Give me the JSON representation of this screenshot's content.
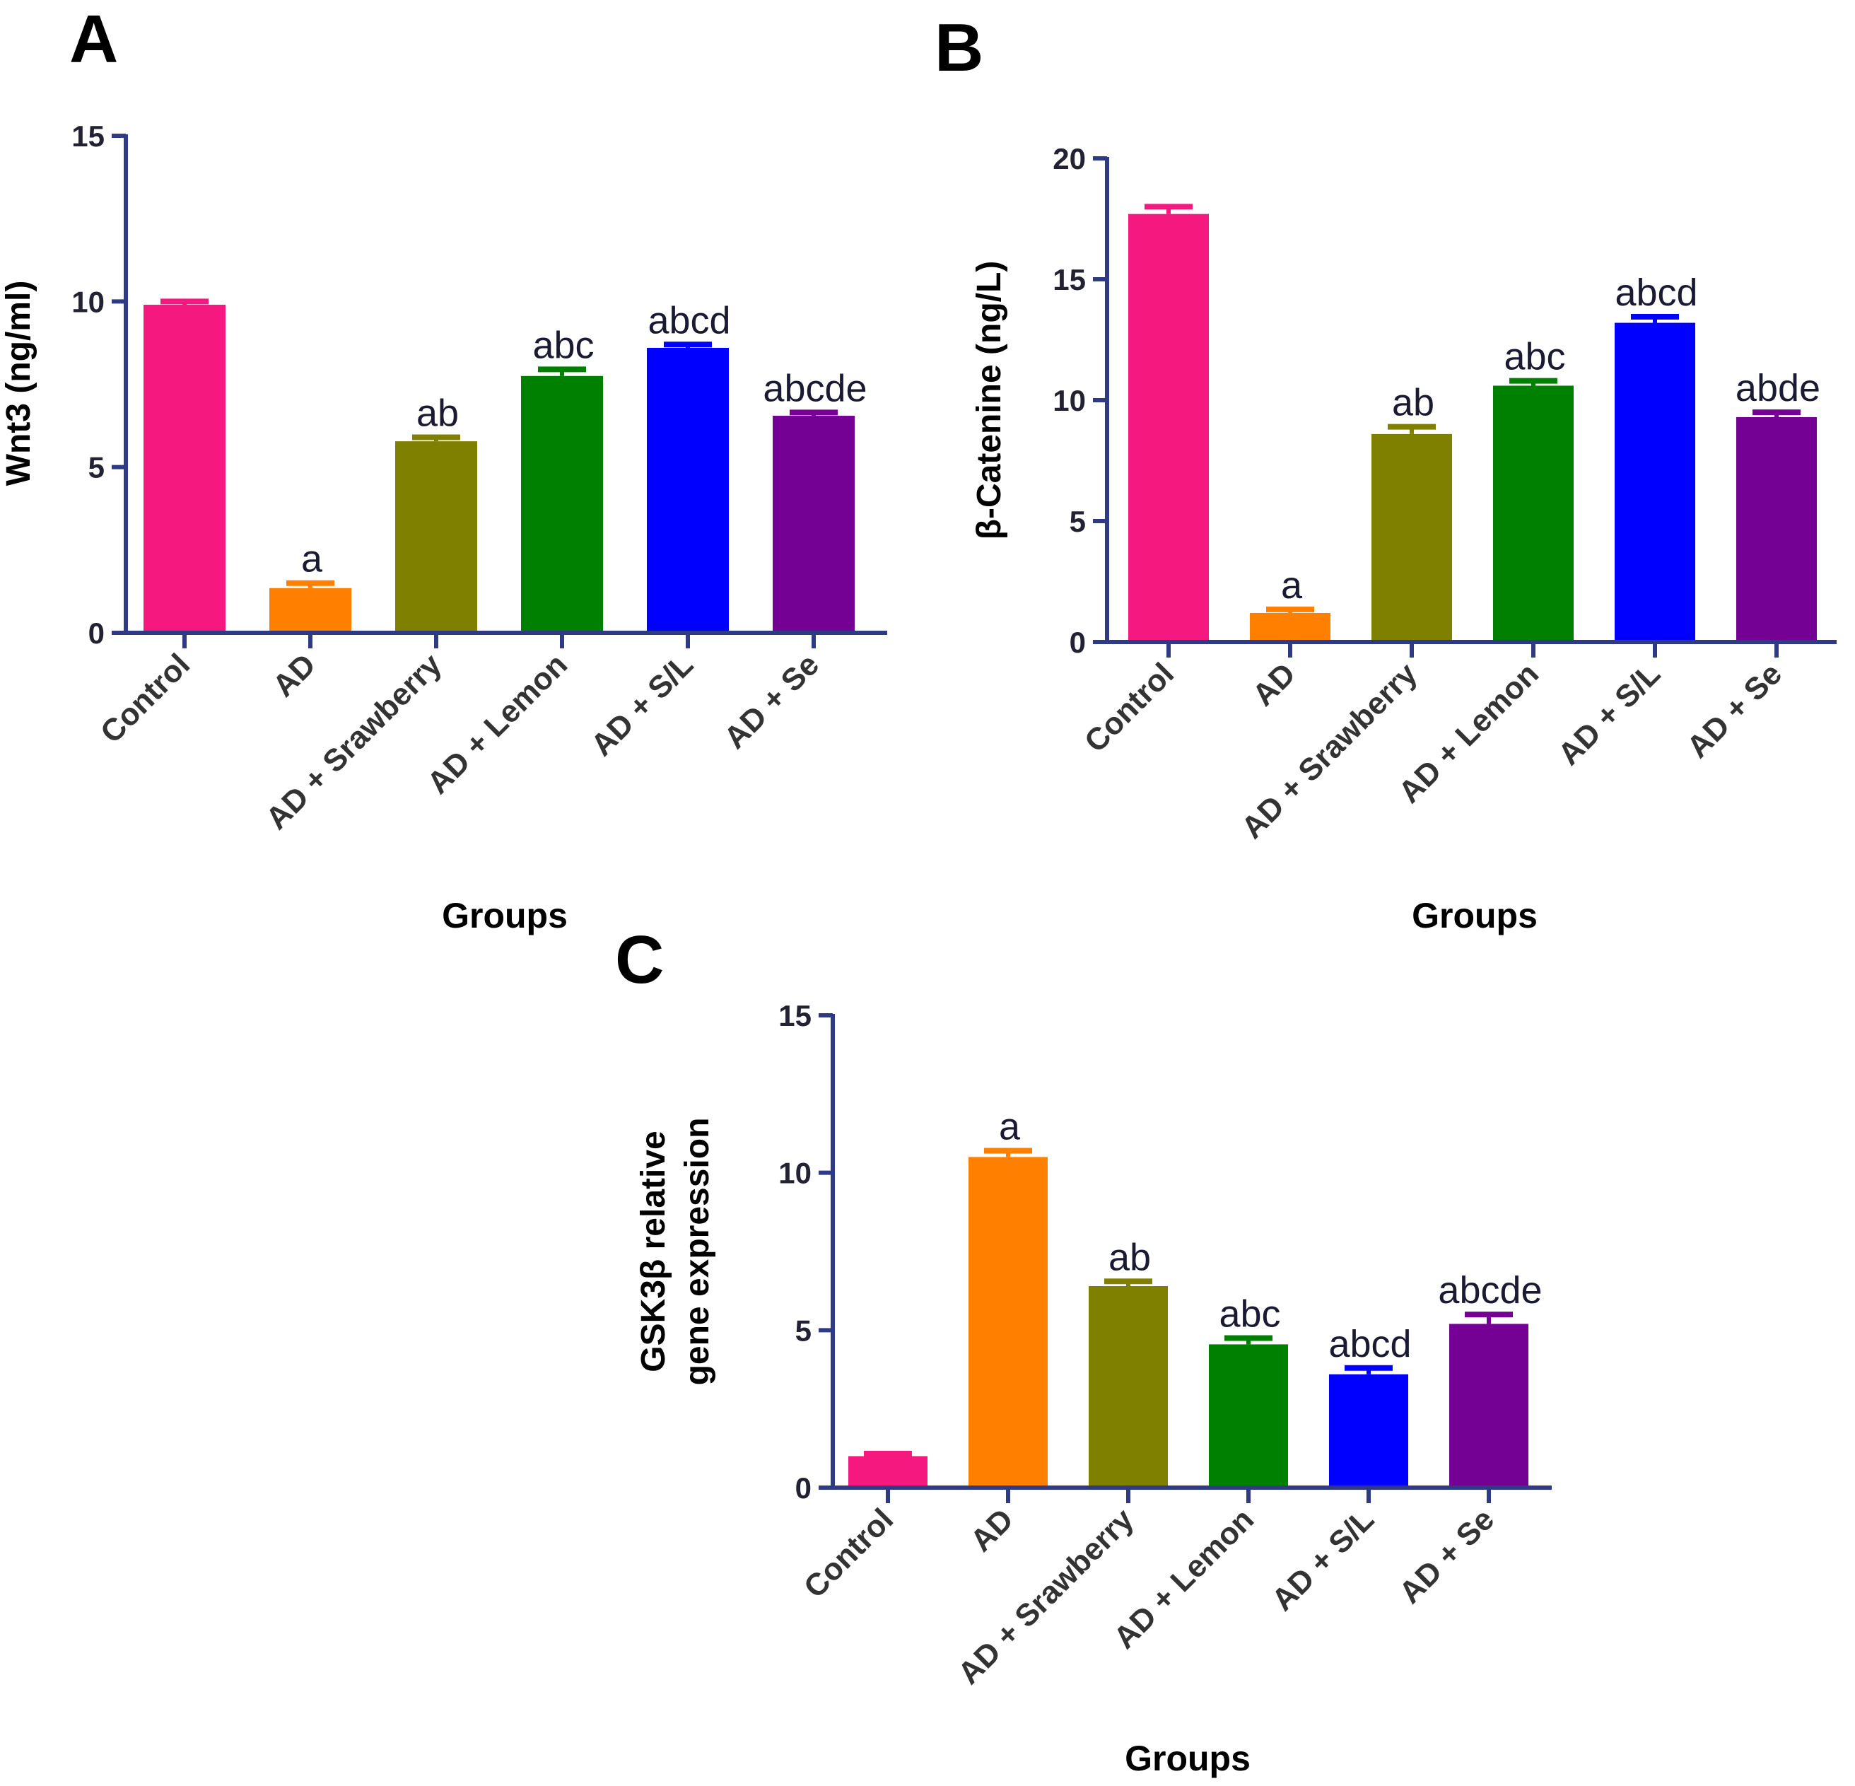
{
  "chart_data": [
    {
      "panel": "A",
      "type": "bar",
      "categories": [
        "Control",
        "AD",
        "AD + Srawberry",
        "AD + Lemon",
        "AD + S/L",
        "AD + Se"
      ],
      "values": [
        9.9,
        1.35,
        5.78,
        7.75,
        8.6,
        6.55
      ],
      "errors": [
        0.1,
        0.15,
        0.12,
        0.2,
        0.1,
        0.1
      ],
      "colors": [
        "#f5187e",
        "#ff8000",
        "#808000",
        "#008000",
        "#0000ff",
        "#750094"
      ],
      "significance_labels": [
        "",
        "a",
        "ab",
        "abc",
        "abcd",
        "abcde"
      ],
      "ylabel": "Wnt3 (ng/ml)",
      "xlabel": "Groups",
      "ylim": [
        0,
        15
      ],
      "yticks": [
        0,
        5,
        10,
        15
      ]
    },
    {
      "panel": "B",
      "type": "bar",
      "categories": [
        "Control",
        "AD",
        "AD + Srawberry",
        "AD + Lemon",
        "AD + S/L",
        "AD + Se"
      ],
      "values": [
        17.7,
        1.2,
        8.6,
        10.6,
        13.2,
        9.3
      ],
      "errors": [
        0.3,
        0.15,
        0.3,
        0.2,
        0.25,
        0.2
      ],
      "colors": [
        "#f5187e",
        "#ff8000",
        "#808000",
        "#008000",
        "#0000ff",
        "#750094"
      ],
      "significance_labels": [
        "",
        "a",
        "ab",
        "abc",
        "abcd",
        "abde"
      ],
      "ylabel": "β-Catenine (ng/L)",
      "xlabel": "Groups",
      "ylim": [
        0,
        20
      ],
      "yticks": [
        0,
        5,
        10,
        15,
        20
      ]
    },
    {
      "panel": "C",
      "type": "bar",
      "categories": [
        "Control",
        "AD",
        "AD + Srawberry",
        "AD + Lemon",
        "AD + S/L",
        "AD + Se"
      ],
      "values": [
        1.0,
        10.5,
        6.4,
        4.55,
        3.6,
        5.2
      ],
      "errors": [
        0.08,
        0.2,
        0.15,
        0.2,
        0.2,
        0.3
      ],
      "colors": [
        "#f5187e",
        "#ff8000",
        "#808000",
        "#008000",
        "#0000ff",
        "#750094"
      ],
      "significance_labels": [
        "",
        "a",
        "ab",
        "abc",
        "abcd",
        "abcde"
      ],
      "ylabel": [
        "GSK3β relative",
        "gene expression"
      ],
      "xlabel": "Groups",
      "ylim": [
        0,
        15
      ],
      "yticks": [
        0,
        5,
        10,
        15
      ]
    }
  ],
  "axis_color": "#2e3b82"
}
